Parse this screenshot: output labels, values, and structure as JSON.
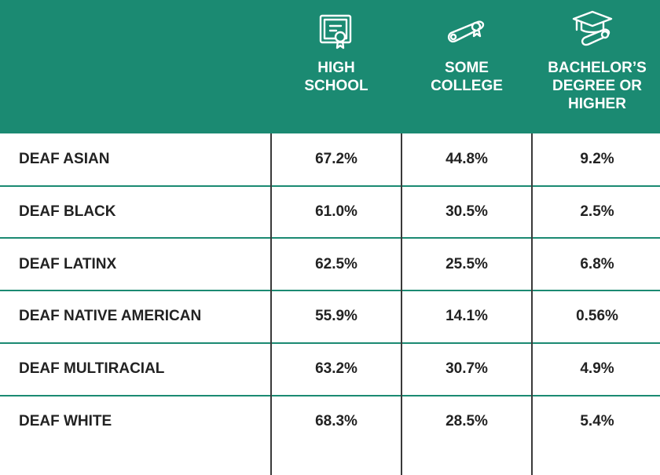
{
  "table": {
    "columns": [
      [
        "HIGH",
        "SCHOOL"
      ],
      [
        "SOME",
        "COLLEGE"
      ],
      [
        "BACHELOR’S",
        "DEGREE OR",
        "HIGHER"
      ]
    ],
    "rows": [
      [
        "DEAF ASIAN",
        "67.2%",
        "44.8%",
        "9.2%"
      ],
      [
        "DEAF BLACK",
        "61.0%",
        "30.5%",
        "2.5%"
      ],
      [
        "DEAF LATINX",
        "62.5%",
        "25.5%",
        "6.8%"
      ],
      [
        "DEAF NATIVE AMERICAN",
        "55.9%",
        "14.1%",
        "0.56%"
      ],
      [
        "DEAF MULTIRACIAL",
        "63.2%",
        "30.7%",
        "4.9%"
      ],
      [
        "DEAF WHITE",
        "68.3%",
        "28.5%",
        "5.4%"
      ]
    ]
  }
}
